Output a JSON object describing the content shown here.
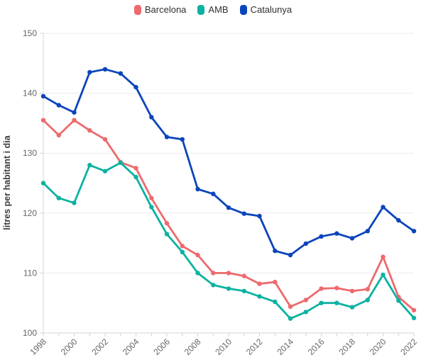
{
  "chart_data": {
    "type": "line",
    "title": "",
    "xlabel": "",
    "ylabel": "litres per habitant i dia",
    "ylim": [
      100,
      150
    ],
    "yticks": [
      100,
      110,
      120,
      130,
      140,
      150
    ],
    "grid": true,
    "legend_position": "top-center",
    "x": [
      1998,
      1999,
      2000,
      2001,
      2002,
      2003,
      2004,
      2005,
      2006,
      2007,
      2008,
      2009,
      2010,
      2011,
      2012,
      2013,
      2014,
      2015,
      2016,
      2017,
      2018,
      2019,
      2020,
      2021,
      2022
    ],
    "x_tick_labels": [
      1998,
      2000,
      2002,
      2004,
      2006,
      2008,
      2010,
      2012,
      2014,
      2016,
      2018,
      2020,
      2022
    ],
    "series": [
      {
        "name": "Barcelona",
        "color": "#ed6a6d",
        "values": [
          135.5,
          133.0,
          135.5,
          133.8,
          132.3,
          128.5,
          127.5,
          122.5,
          118.3,
          114.5,
          113.0,
          110.0,
          110.0,
          109.5,
          108.2,
          108.5,
          104.4,
          105.5,
          107.4,
          107.5,
          107.0,
          107.3,
          112.7,
          106.0,
          103.8
        ]
      },
      {
        "name": "AMB",
        "color": "#0cb2a1",
        "values": [
          125.0,
          122.5,
          121.7,
          128.0,
          127.0,
          128.4,
          126.0,
          121.0,
          116.5,
          113.5,
          110.0,
          108.0,
          107.4,
          107.0,
          106.1,
          105.2,
          102.4,
          103.5,
          105.0,
          105.0,
          104.3,
          105.5,
          109.7,
          105.4,
          102.5
        ]
      },
      {
        "name": "Catalunya",
        "color": "#0b45bb",
        "values": [
          139.5,
          138.0,
          136.8,
          143.5,
          144.0,
          143.3,
          141.0,
          136.0,
          132.7,
          132.3,
          124.0,
          123.2,
          120.9,
          119.9,
          119.5,
          113.7,
          113.0,
          114.9,
          116.1,
          116.6,
          115.8,
          117.0,
          121.0,
          118.8,
          117.0
        ]
      }
    ]
  },
  "colors": {
    "background": "#ffffff",
    "grid": "#ebebeb",
    "axis": "#d4d4d4",
    "tick_label": "#666666",
    "axis_title": "#3c3c3c",
    "legend_text": "#2f2f2f"
  }
}
